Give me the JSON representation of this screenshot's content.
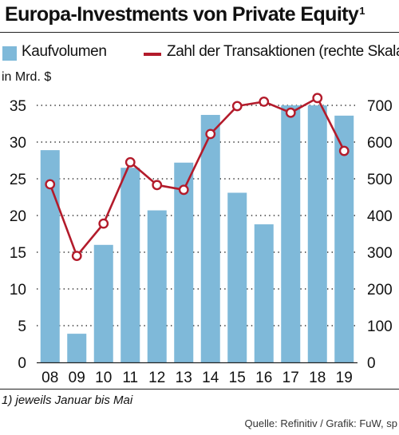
{
  "title": "Europa-Investments von Private Equity",
  "title_note": "1",
  "legend": {
    "bar_label": "Kaufvolumen",
    "line_label": "Zahl der Transaktionen (rechte Skala)"
  },
  "unit_label": "in Mrd. $",
  "footnote": "1) jeweils Januar bis Mai",
  "source": "Quelle: Refinitiv / Grafik: FuW, sp",
  "colors": {
    "bar": "#7fb9d9",
    "line": "#b31b2b"
  },
  "chart_data": {
    "type": "bar",
    "categories": [
      "08",
      "09",
      "10",
      "11",
      "12",
      "13",
      "14",
      "15",
      "16",
      "17",
      "18",
      "19"
    ],
    "series": [
      {
        "name": "Kaufvolumen",
        "type": "bar",
        "axis": "left",
        "values": [
          28.9,
          3.9,
          16.0,
          26.5,
          20.7,
          27.2,
          33.7,
          23.1,
          18.8,
          35.0,
          35.0,
          33.6
        ]
      },
      {
        "name": "Zahl der Transaktionen (rechte Skala)",
        "type": "line",
        "axis": "right",
        "values": [
          485,
          290,
          378,
          545,
          483,
          470,
          622,
          698,
          710,
          680,
          720,
          576
        ]
      }
    ],
    "y_left": {
      "min": 0,
      "max": 35,
      "ticks": [
        0,
        5,
        10,
        15,
        20,
        25,
        30,
        35
      ]
    },
    "y_right": {
      "min": 0,
      "max": 700,
      "ticks": [
        0,
        100,
        200,
        300,
        400,
        500,
        600,
        700
      ]
    },
    "grid": "horizontal-dotted",
    "legend_position": "top"
  }
}
